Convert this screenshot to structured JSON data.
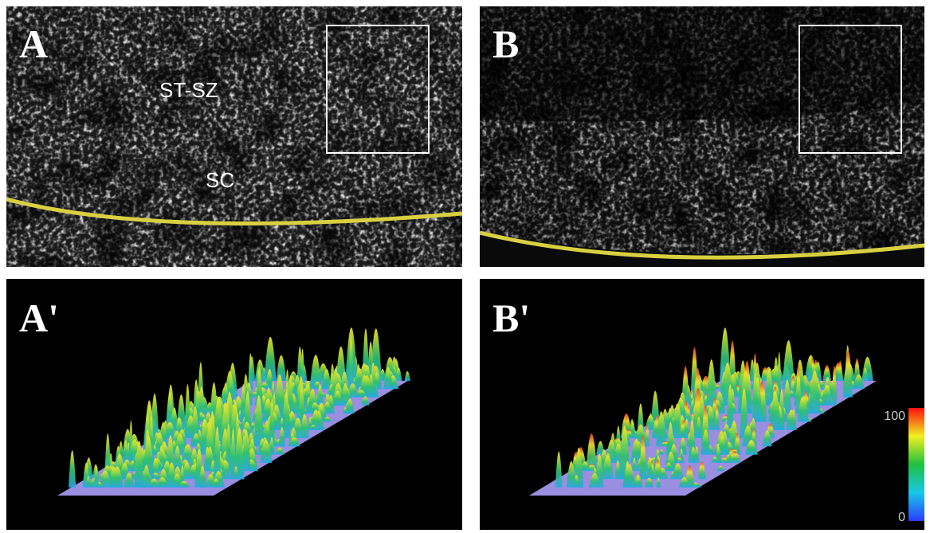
{
  "panels": [
    {
      "label": "A",
      "annotations": [
        "ST-SZ",
        "SC"
      ]
    },
    {
      "label": "B"
    },
    {
      "label": "A'"
    },
    {
      "label": "B'",
      "colorbar": {
        "max": "100",
        "min": "0"
      }
    }
  ]
}
